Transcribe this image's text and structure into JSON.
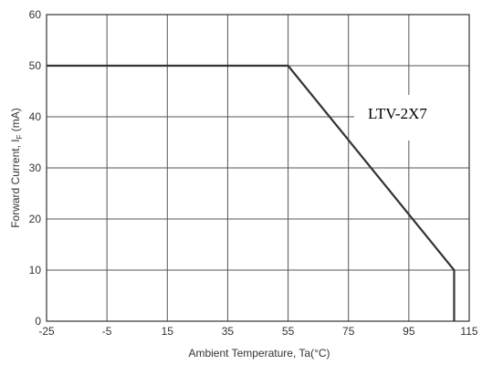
{
  "chart_data": {
    "type": "line",
    "title": "",
    "xlabel": "Ambient Temperature, Ta(°C)",
    "ylabel_main": "Forward Current, I",
    "ylabel_sub": "F",
    "ylabel_unit": " (mA)",
    "xlim": [
      -25,
      115
    ],
    "ylim": [
      0,
      60
    ],
    "x_ticks": [
      -25,
      -5,
      15,
      35,
      55,
      75,
      95,
      115
    ],
    "y_ticks": [
      0,
      10,
      20,
      30,
      40,
      50,
      60
    ],
    "grid": true,
    "series": [
      {
        "x": [
          -25,
          55,
          110,
          110
        ],
        "y": [
          50,
          50,
          10,
          0
        ]
      }
    ],
    "annotation": "LTV-2X7",
    "colors": {
      "line": "#333333",
      "grid": "#555555",
      "frame": "#333333"
    }
  }
}
